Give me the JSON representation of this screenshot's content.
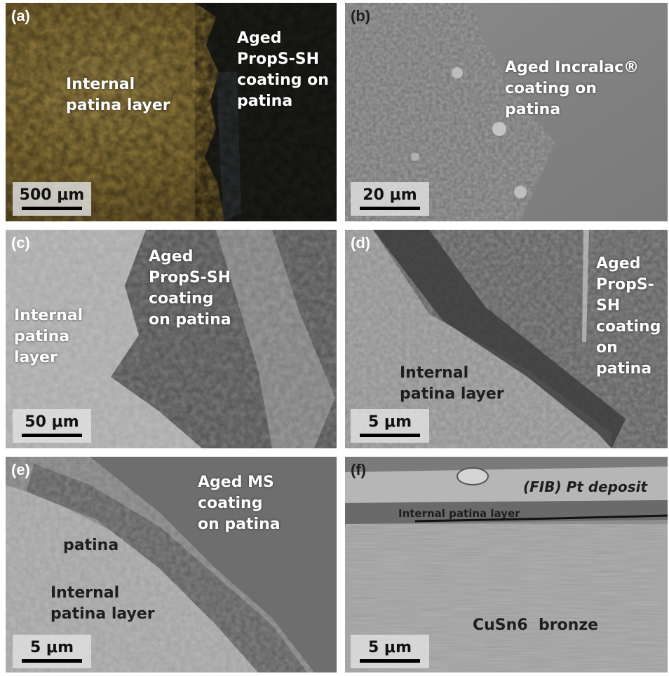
{
  "panels": {
    "a": {
      "label": "(a)",
      "left_region": "Internal patina layer",
      "right_region": "Aged PropS-SH coating on patina",
      "scale": "500 μm"
    },
    "b": {
      "label": "(b)",
      "region": "Aged Incralac® coating on patina",
      "scale": "20 μm"
    },
    "c": {
      "label": "(c)",
      "left_region": "Internal patina layer",
      "center_region": "Aged PropS-SH coating on patina",
      "scale": "50 μm"
    },
    "d": {
      "label": "(d)",
      "coating_region": "Aged PropS-SH coating on patina",
      "lower_region": "Internal patina layer",
      "scale": "5 μm"
    },
    "e": {
      "label": "(e)",
      "coating_region": "Aged MS coating on patina",
      "middle_region": "patina",
      "lower_region": "Internal patina layer",
      "scale": "5 μm"
    },
    "f": {
      "label": "(f)",
      "top_layer": "(FIB) Pt deposit",
      "middle_layer": "Internal patina layer",
      "substrate": "CuSn6  bronze",
      "scale": "5 μm"
    }
  },
  "colors": {
    "patina_gold": "#9a8440",
    "patina_dark": "#1c1c18",
    "sem_gray": "#8a8a8a",
    "white_text": "#ffffff",
    "dark_text": "#1e1e1e"
  }
}
